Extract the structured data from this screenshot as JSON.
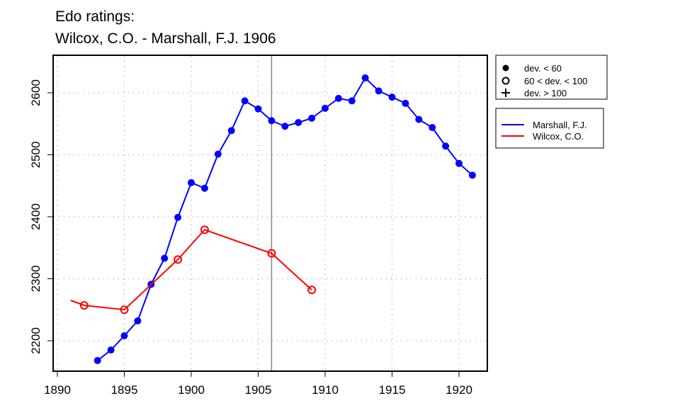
{
  "chart_data": {
    "type": "line",
    "title": [
      "Edo ratings:",
      "Wilcox, C.O. - Marshall, F.J. 1906"
    ],
    "xlabel": "",
    "ylabel": "",
    "xlim": [
      1890,
      1922
    ],
    "ylim": [
      2160,
      2660
    ],
    "xticks": [
      1890,
      1895,
      1900,
      1905,
      1910,
      1915,
      1920
    ],
    "yticks": [
      2200,
      2300,
      2400,
      2500,
      2600
    ],
    "grid": true,
    "vline": 1906,
    "legend_markers": [
      {
        "marker": "filled",
        "label": "dev. < 60"
      },
      {
        "marker": "open",
        "label": "60 < dev. < 100"
      },
      {
        "marker": "plus",
        "label": "dev. > 100"
      }
    ],
    "series": [
      {
        "name": "Marshall, F.J.",
        "color": "#0000ff",
        "x": [
          1893,
          1894,
          1895,
          1896,
          1897,
          1898,
          1899,
          1900,
          1901,
          1902,
          1903,
          1904,
          1905,
          1906,
          1907,
          1908,
          1909,
          1910,
          1911,
          1912,
          1913,
          1914,
          1915,
          1916,
          1917,
          1918,
          1919,
          1920,
          1921
        ],
        "y": [
          2168,
          2185,
          2208,
          2232,
          2291,
          2333,
          2399,
          2455,
          2446,
          2501,
          2539,
          2587,
          2574,
          2555,
          2546,
          2552,
          2559,
          2575,
          2591,
          2587,
          2624,
          2603,
          2593,
          2583,
          2557,
          2544,
          2514,
          2486,
          2467
        ],
        "markers": [
          "filled",
          "filled",
          "filled",
          "filled",
          "filled",
          "filled",
          "filled",
          "filled",
          "filled",
          "filled",
          "filled",
          "filled",
          "filled",
          "filled",
          "filled",
          "filled",
          "filled",
          "filled",
          "filled",
          "filled",
          "filled",
          "filled",
          "filled",
          "filled",
          "filled",
          "filled",
          "filled",
          "filled",
          "filled"
        ]
      },
      {
        "name": "Wilcox, C.O.",
        "color": "#ff0000",
        "x": [
          1891,
          1892,
          1895,
          1899,
          1901,
          1906,
          1909
        ],
        "y": [
          2265,
          2257,
          2250,
          2331,
          2379,
          2341,
          2282
        ],
        "markers": [
          "none",
          "open",
          "open",
          "open",
          "open",
          "open",
          "open"
        ]
      }
    ]
  }
}
